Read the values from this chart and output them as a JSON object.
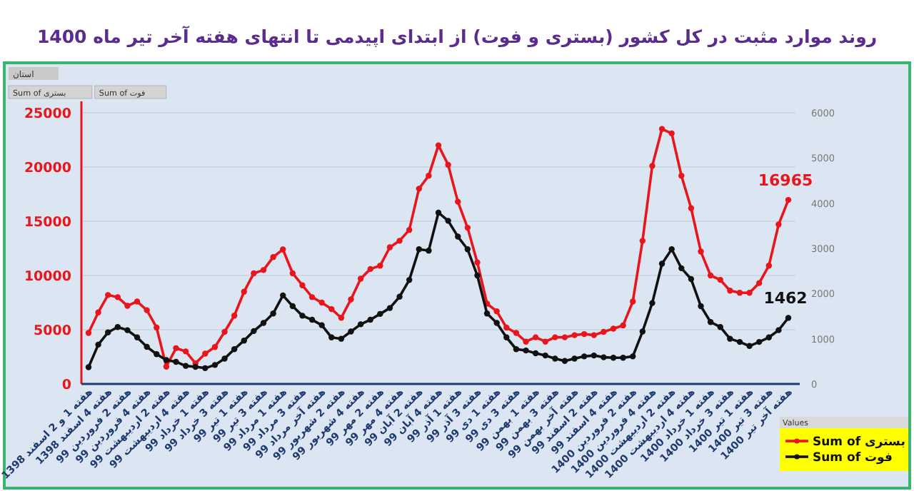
{
  "chart_data": {
    "type": "line",
    "title": "روند موارد مثبت در کل کشور (بستری و فوت) از ابتدای اپیدمی تا انتهای هفته آخر تیر ماه 1400",
    "categories": [
      "هفته 1 و 2 اسفند 1398",
      null,
      "هفته 4 اسفند 1398",
      null,
      "هفته 2 فروردین 99",
      null,
      "هفته 4 فروردین 99",
      null,
      "هفته 2 اردیبهشت 99",
      null,
      "هفته 4 اردیبهشت 99",
      null,
      "هفته 1 خرداد 99",
      null,
      "هفته 3 خرداد 99",
      null,
      "هفته 1 تیر 99",
      null,
      "هفته 3 تیر 99",
      null,
      "هفته 1 مرداد 99",
      null,
      "هفته 3 مرداد 99",
      null,
      "هفته آخر مرداد 99",
      null,
      "هفته 2 شهریور 99",
      null,
      "هفته 4 شهریور 99",
      null,
      "هفته 2 مهر 99",
      null,
      "هفته 4 مهر 99",
      null,
      "هفته 2 آبان 99",
      null,
      "هفته 4 آبان 99",
      null,
      "هفته 1 آذر 99",
      null,
      "هفته 3 آذر 99",
      null,
      "هفته 1 دی 99",
      null,
      "هفته 3 دی 99",
      null,
      "هفته 1 بهمن 99",
      null,
      "هفته 3 بهمن 99",
      null,
      "هفته آخر بهمن 99",
      null,
      "هفته 2 اسفند 99",
      null,
      "هفته 4 اسفند 99",
      null,
      "هفته 2 فروردین 1400",
      null,
      "هفته 4 فروردین 1400",
      null,
      "هفته 2 اردیبهشت 1400",
      null,
      "هفته 4 اردیبهشت 1400",
      null,
      "هفته 1 خرداد 1400",
      null,
      "هفته 3 خرداد 1400",
      null,
      "هفته 1 تیر 1400",
      null,
      "هفته 3 تیر 1400",
      null,
      "هفته آخر تیر 1400"
    ],
    "series": [
      {
        "name": "Sum of بستری",
        "color": "#e8161c",
        "values": [
          4700,
          6600,
          8200,
          8000,
          7200,
          7600,
          6800,
          5200,
          1600,
          3300,
          3000,
          1900,
          2800,
          3400,
          4800,
          6300,
          8500,
          10200,
          10500,
          11700,
          12400,
          10200,
          9100,
          8000,
          7500,
          6900,
          6100,
          7800,
          9700,
          10600,
          10900,
          12600,
          13200,
          14200,
          18000,
          19200,
          22000,
          20200,
          16800,
          14400,
          11200,
          7400,
          6700,
          5200,
          4700,
          3900,
          4300,
          3900,
          4300,
          4300,
          4500,
          4600,
          4500,
          4800,
          5100,
          5400,
          7600,
          13200,
          20100,
          23500,
          23100,
          19200,
          16200,
          12200,
          10000,
          9600,
          8600,
          8400,
          8400,
          9300,
          10900,
          14700,
          16965
        ],
        "value_labels": [
          null,
          null,
          null,
          null,
          null,
          null,
          null,
          null,
          null,
          null,
          null,
          null,
          null,
          null,
          null,
          null,
          null,
          null,
          null,
          null,
          null,
          null,
          null,
          null,
          null,
          null,
          null,
          null,
          null,
          null,
          null,
          null,
          null,
          null,
          null,
          null,
          null,
          null,
          null,
          null,
          null,
          null,
          null,
          null,
          null,
          null,
          null,
          null,
          null,
          null,
          null,
          null,
          null,
          null,
          null,
          null,
          null,
          null,
          null,
          null,
          null,
          null,
          null,
          null,
          null,
          null,
          null,
          null,
          null,
          null,
          null,
          null,
          "16965"
        ]
      },
      {
        "name": "Sum of فوت",
        "color": "#111111",
        "axis": "y2",
        "values": [
          370,
          870,
          1140,
          1260,
          1190,
          1030,
          820,
          660,
          530,
          490,
          400,
          380,
          350,
          420,
          560,
          770,
          960,
          1170,
          1350,
          1560,
          1960,
          1720,
          1510,
          1420,
          1300,
          1030,
          1000,
          1160,
          1320,
          1420,
          1550,
          1680,
          1930,
          2300,
          2980,
          2950,
          3790,
          3610,
          3260,
          2980,
          2400,
          1560,
          1350,
          1030,
          770,
          740,
          680,
          630,
          560,
          510,
          560,
          610,
          630,
          590,
          580,
          580,
          610,
          1160,
          1790,
          2660,
          2980,
          2560,
          2320,
          1720,
          1370,
          1260,
          1000,
          930,
          840,
          930,
          1030,
          1190,
          1462
        ],
        "value_labels": [
          null,
          null,
          null,
          null,
          null,
          null,
          null,
          null,
          null,
          null,
          null,
          null,
          null,
          null,
          null,
          null,
          null,
          null,
          null,
          null,
          null,
          null,
          null,
          null,
          null,
          null,
          null,
          null,
          null,
          null,
          null,
          null,
          null,
          null,
          null,
          null,
          null,
          null,
          null,
          null,
          null,
          null,
          null,
          null,
          null,
          null,
          null,
          null,
          null,
          null,
          null,
          null,
          null,
          null,
          null,
          null,
          null,
          null,
          null,
          null,
          null,
          null,
          null,
          null,
          null,
          null,
          null,
          null,
          null,
          null,
          null,
          null,
          "1462"
        ]
      }
    ],
    "ylim": [
      0,
      25000
    ],
    "yticks": [
      0,
      5000,
      10000,
      15000,
      20000,
      25000
    ],
    "y2lim": [
      0,
      6000
    ],
    "y2ticks": [
      0,
      1000,
      2000,
      3000,
      4000,
      5000,
      6000
    ],
    "grid": "y",
    "legend": "bottom right",
    "legend_title": "Values",
    "marker": "circle",
    "line_style": "solid",
    "annotations": [
      "استان",
      "Sum of بستری",
      "Sum of فوت"
    ]
  }
}
